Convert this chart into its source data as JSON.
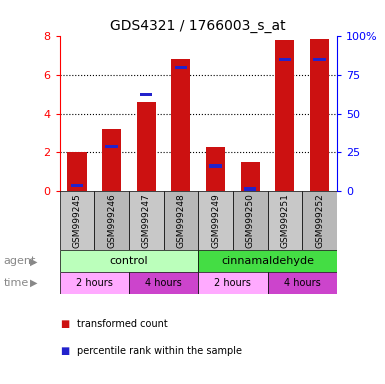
{
  "title": "GDS4321 / 1766003_s_at",
  "samples": [
    "GSM999245",
    "GSM999246",
    "GSM999247",
    "GSM999248",
    "GSM999249",
    "GSM999250",
    "GSM999251",
    "GSM999252"
  ],
  "red_values": [
    2.05,
    3.2,
    4.6,
    6.85,
    2.3,
    1.5,
    7.8,
    7.85
  ],
  "blue_values": [
    0.3,
    2.3,
    5.0,
    6.4,
    1.3,
    0.1,
    6.8,
    6.8
  ],
  "ylim_left": [
    0,
    8
  ],
  "ylim_right": [
    0,
    100
  ],
  "yticks_left": [
    0,
    2,
    4,
    6,
    8
  ],
  "yticks_right": [
    0,
    25,
    50,
    75,
    100
  ],
  "ytick_labels_right": [
    "0",
    "25",
    "50",
    "75",
    "100%"
  ],
  "bar_width": 0.55,
  "red_color": "#cc1111",
  "blue_color": "#2222cc",
  "agent_groups": [
    {
      "label": "control",
      "start": 0,
      "end": 4,
      "color": "#bbffbb"
    },
    {
      "label": "cinnamaldehyde",
      "start": 4,
      "end": 8,
      "color": "#44dd44"
    }
  ],
  "time_groups": [
    {
      "label": "2 hours",
      "start": 0,
      "end": 2,
      "color": "#ffaaff"
    },
    {
      "label": "4 hours",
      "start": 2,
      "end": 4,
      "color": "#cc44cc"
    },
    {
      "label": "2 hours",
      "start": 4,
      "end": 6,
      "color": "#ffaaff"
    },
    {
      "label": "4 hours",
      "start": 6,
      "end": 8,
      "color": "#cc44cc"
    }
  ],
  "legend_items": [
    {
      "label": "transformed count",
      "color": "#cc1111"
    },
    {
      "label": "percentile rank within the sample",
      "color": "#2222cc"
    }
  ],
  "agent_label": "agent",
  "time_label": "time",
  "title_fontsize": 10,
  "tick_fontsize": 8,
  "sample_fontsize": 6.5,
  "label_fontsize": 8,
  "row_label_fontsize": 8,
  "legend_fontsize": 7,
  "grid_yticks": [
    2,
    4,
    6
  ]
}
